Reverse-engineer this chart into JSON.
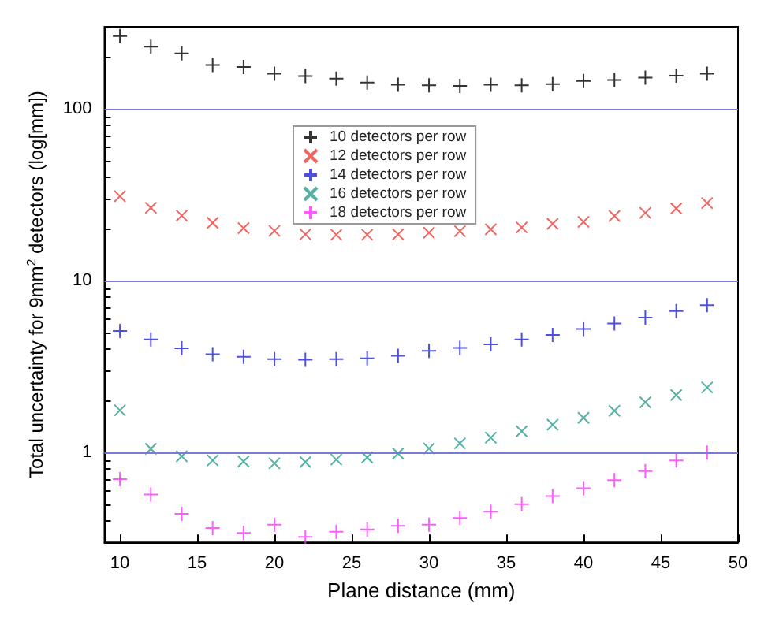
{
  "chart_data": {
    "type": "scatter",
    "xlabel": "Plane distance (mm)",
    "ylabel": "Total uncertainty for 9mm$^{2}$ detectors (log[mm])",
    "x": [
      10,
      12,
      14,
      16,
      18,
      20,
      22,
      24,
      26,
      28,
      30,
      32,
      34,
      36,
      38,
      40,
      42,
      44,
      46,
      48
    ],
    "series": [
      {
        "name": "10 detectors per row",
        "color": "#000000",
        "marker": "cross",
        "values": [
          265,
          230,
          210,
          180,
          175,
          160,
          155,
          150,
          142,
          138,
          137,
          136,
          138,
          137,
          139,
          145,
          147,
          152,
          156,
          160
        ]
      },
      {
        "name": "12 detectors per row",
        "color": "#e8413f",
        "marker": "x",
        "values": [
          31,
          26.5,
          23.9,
          21.7,
          20.2,
          19.5,
          18.6,
          18.5,
          18.5,
          18.6,
          19.0,
          19.4,
          19.9,
          20.4,
          21.4,
          22.0,
          23.8,
          24.8,
          26.3,
          28.3
        ]
      },
      {
        "name": "14 detectors per row",
        "color": "#2424d8",
        "marker": "cross",
        "values": [
          5.1,
          4.55,
          4.04,
          3.73,
          3.6,
          3.49,
          3.46,
          3.49,
          3.53,
          3.65,
          3.9,
          4.06,
          4.26,
          4.55,
          4.83,
          5.23,
          5.63,
          6.1,
          6.65,
          7.2
        ]
      },
      {
        "name": "16 detectors per row",
        "color": "#2a9d8f",
        "marker": "x",
        "values": [
          1.76,
          1.05,
          0.95,
          0.9,
          0.887,
          0.865,
          0.88,
          0.91,
          0.936,
          0.986,
          1.055,
          1.13,
          1.22,
          1.33,
          1.45,
          1.59,
          1.75,
          1.96,
          2.16,
          2.39
        ]
      },
      {
        "name": "18 detectors per row",
        "color": "#ff33ff",
        "marker": "cross",
        "values": [
          0.7,
          0.57,
          0.44,
          0.364,
          0.34,
          0.38,
          0.323,
          0.346,
          0.357,
          0.374,
          0.38,
          0.416,
          0.453,
          0.5,
          0.557,
          0.62,
          0.69,
          0.78,
          0.9,
          1.0
        ]
      }
    ],
    "xlim": [
      9,
      50
    ],
    "xticks": [
      10,
      15,
      20,
      25,
      30,
      35,
      40,
      45,
      50
    ],
    "ylim": [
      0.3,
      300
    ],
    "log": "y",
    "yticks": [
      {
        "value": 0.3,
        "label": null
      },
      {
        "value": 0.4,
        "label": null
      },
      {
        "value": 0.5,
        "label": null
      },
      {
        "value": 0.6,
        "label": null
      },
      {
        "value": 0.7,
        "label": null
      },
      {
        "value": 0.8,
        "label": null
      },
      {
        "value": 0.9,
        "label": null
      },
      1,
      {
        "value": 2,
        "label": null
      },
      {
        "value": 3,
        "label": null
      },
      {
        "value": 4,
        "label": null
      },
      {
        "value": 5,
        "label": null
      },
      {
        "value": 6,
        "label": null
      },
      {
        "value": 7,
        "label": null
      },
      {
        "value": 8,
        "label": null
      },
      {
        "value": 9,
        "label": null
      },
      10,
      {
        "value": 20,
        "label": null
      },
      {
        "value": 30,
        "label": null
      },
      {
        "value": 40,
        "label": null
      },
      {
        "value": 50,
        "label": null
      },
      {
        "value": 60,
        "label": null
      },
      {
        "value": 70,
        "label": null
      },
      {
        "value": 80,
        "label": null
      },
      {
        "value": 90,
        "label": null
      },
      100,
      {
        "value": 200,
        "label": null
      },
      {
        "value": 300,
        "label": null
      }
    ],
    "grid": "y",
    "legend": "top"
  }
}
